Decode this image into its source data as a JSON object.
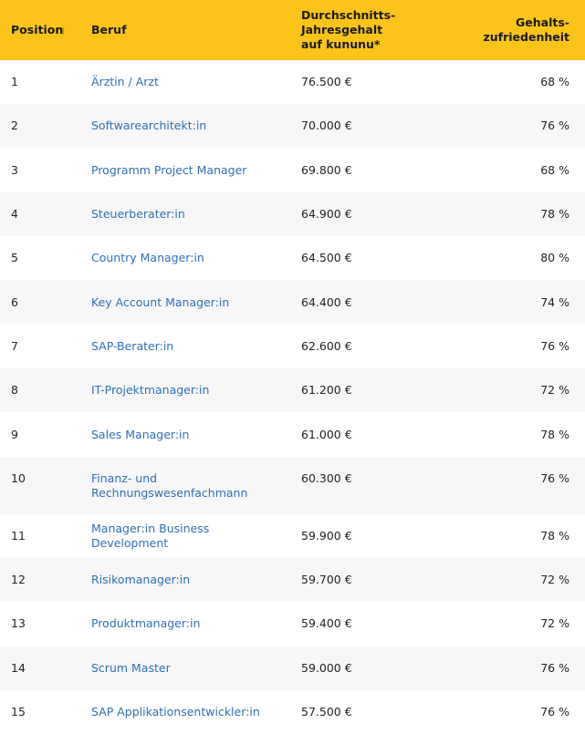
{
  "headers": {
    "position": "Position",
    "job": "Beruf",
    "salary_line1": "Durchschnitts-Jahresgehalt",
    "salary_line2": "auf kununu*",
    "satisfaction_line1": "Gehalts-",
    "satisfaction_line2": "zufriedenheit"
  },
  "rows": [
    {
      "position": "1",
      "job": "Ärztin / Arzt",
      "salary": "76.500 €",
      "satisfaction": "68 %"
    },
    {
      "position": "2",
      "job": "Softwarearchitekt:in",
      "salary": "70.000 €",
      "satisfaction": "76 %"
    },
    {
      "position": "3",
      "job": "Programm Project Manager",
      "salary": "69.800 €",
      "satisfaction": "68 %"
    },
    {
      "position": "4",
      "job": "Steuerberater:in",
      "salary": "64.900 €",
      "satisfaction": "78 %"
    },
    {
      "position": "5",
      "job": "Country Manager:in",
      "salary": "64.500 €",
      "satisfaction": "80 %"
    },
    {
      "position": "6",
      "job": "Key Account Manager:in",
      "salary": "64.400 €",
      "satisfaction": "74 %"
    },
    {
      "position": "7",
      "job": "SAP-Berater:in",
      "salary": "62.600 €",
      "satisfaction": "76 %"
    },
    {
      "position": "8",
      "job": "IT-Projektmanager:in",
      "salary": "61.200 €",
      "satisfaction": "72 %"
    },
    {
      "position": "9",
      "job": "Sales Manager:in",
      "salary": "61.000 €",
      "satisfaction": "78 %"
    },
    {
      "position": "10",
      "job_line1": "Finanz- und",
      "job_line2": "Rechnungswesenfachmann",
      "salary": "60.300 €",
      "satisfaction": "76 %"
    },
    {
      "position": "11",
      "job": "Manager:in Business Development",
      "salary": "59.900 €",
      "satisfaction": "78 %"
    },
    {
      "position": "12",
      "job": "Risikomanager:in",
      "salary": "59.700 €",
      "satisfaction": "72 %"
    },
    {
      "position": "13",
      "job": "Produktmanager:in",
      "salary": "59.400 €",
      "satisfaction": "72 %"
    },
    {
      "position": "14",
      "job": "Scrum Master",
      "salary": "59.000 €",
      "satisfaction": "76 %"
    },
    {
      "position": "15",
      "job": "SAP Applikationsentwickler:in",
      "salary": "57.500 €",
      "satisfaction": "76 %"
    }
  ]
}
